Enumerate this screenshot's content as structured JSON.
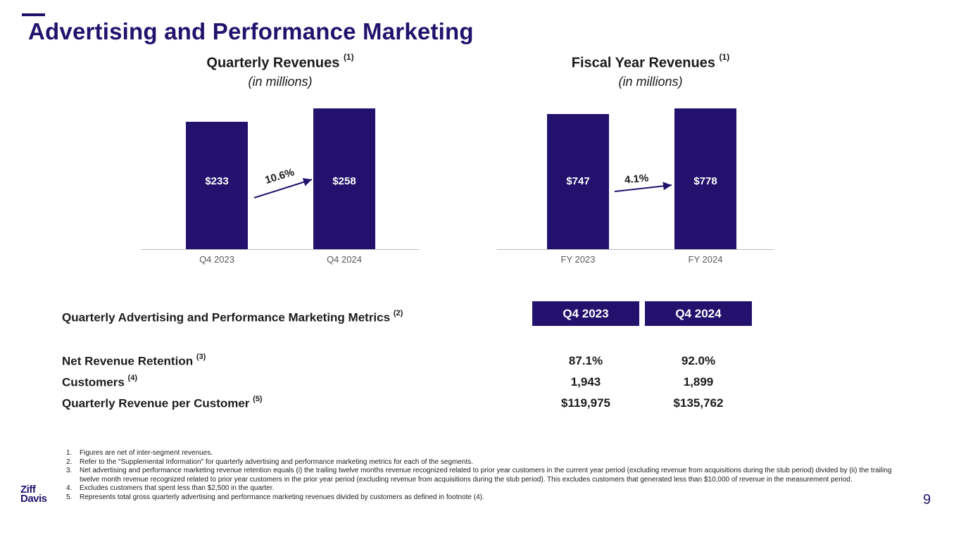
{
  "header": {
    "title": "Advertising and Performance Marketing"
  },
  "brand": {
    "accent_color": "#23126d",
    "logo_line1": "Ziff",
    "logo_line2": "Davis"
  },
  "chart_data": [
    {
      "type": "bar",
      "title": "Quarterly Revenues",
      "title_footnote": "(1)",
      "subtitle": "(in millions)",
      "categories": [
        "Q4 2023",
        "Q4 2024"
      ],
      "values": [
        233,
        258
      ],
      "value_labels": [
        "$233",
        "$258"
      ],
      "growth_label": "10.6%",
      "xlabel": "",
      "ylabel": ""
    },
    {
      "type": "bar",
      "title": "Fiscal Year Revenues",
      "title_footnote": "(1)",
      "subtitle": "(in millions)",
      "categories": [
        "FY 2023",
        "FY 2024"
      ],
      "values": [
        747,
        778
      ],
      "value_labels": [
        "$747",
        "$778"
      ],
      "growth_label": "4.1%",
      "xlabel": "",
      "ylabel": ""
    }
  ],
  "metrics": {
    "title": "Quarterly Advertising and Performance Marketing Metrics",
    "title_footnote": "(2)",
    "columns": [
      "Q4 2023",
      "Q4 2024"
    ],
    "rows": [
      {
        "label": "Net Revenue Retention",
        "footnote": "(3)",
        "values": [
          "87.1%",
          "92.0%"
        ]
      },
      {
        "label": "Customers",
        "footnote": "(4)",
        "values": [
          "1,943",
          "1,899"
        ]
      },
      {
        "label": "Quarterly Revenue per Customer",
        "footnote": "(5)",
        "values": [
          "$119,975",
          "$135,762"
        ]
      }
    ]
  },
  "footnotes": [
    {
      "num": "1.",
      "text": "Figures are net of inter-segment revenues."
    },
    {
      "num": "2.",
      "text": "Refer to the \"Supplemental Information\" for quarterly advertising and performance marketing metrics for each of the segments."
    },
    {
      "num": "3.",
      "text": "Net advertising and performance marketing revenue retention equals (i) the trailing twelve months revenue recognized related to prior year customers in the current year period (excluding revenue from acquisitions during the stub period) divided by (ii) the trailing twelve month revenue recognized related to prior year customers in the prior year period (excluding revenue from acquisitions during the stub period). This excludes customers that generated less than $10,000 of revenue in the measurement period."
    },
    {
      "num": "4.",
      "text": "Excludes customers that spent less than $2,500 in the quarter."
    },
    {
      "num": "5.",
      "text": "Represents total gross quarterly advertising and performance marketing revenues divided by customers as defined in footnote (4)."
    }
  ],
  "page_number": "9"
}
